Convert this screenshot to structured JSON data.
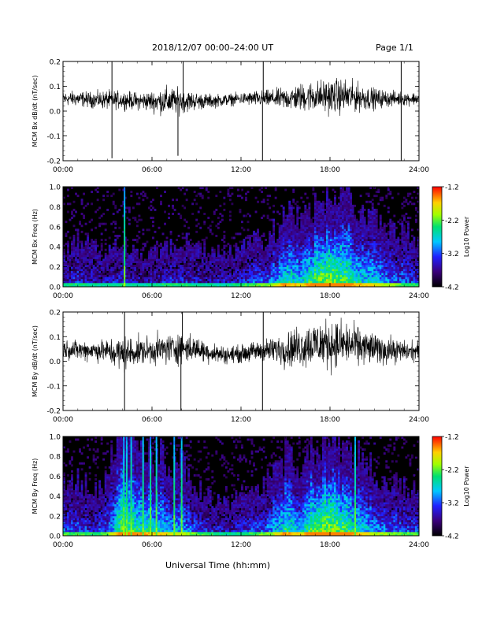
{
  "header": {
    "title": "2018/12/07  00:00–24:00 UT",
    "page": "Page 1/1"
  },
  "x_axis": {
    "label": "Universal Time (hh:mm)",
    "tick_labels": [
      "00:00",
      "06:00",
      "12:00",
      "18:00",
      "24:00"
    ]
  },
  "colorbar": {
    "label": "Log10 Power",
    "tick_labels": [
      "-1.2",
      "-2.2",
      "-3.2",
      "-4.2"
    ],
    "range": [
      -4.2,
      -1.2
    ]
  },
  "chart_data": [
    {
      "type": "line",
      "ylabel": "MCM Bx dB/dt (nT/sec)",
      "xlim_hours": [
        0,
        24
      ],
      "ylim": [
        -0.2,
        0.2
      ],
      "y_tick_labels": [
        "0.2",
        "0.1",
        "0.0",
        "-0.1",
        "-0.2"
      ],
      "x_hours": [
        0,
        1,
        2,
        3,
        4,
        5,
        6,
        7,
        8,
        9,
        10,
        11,
        12,
        13,
        14,
        15,
        16,
        17,
        18,
        19,
        20,
        21,
        22,
        23,
        24
      ],
      "baseline": [
        0.05,
        0.05,
        0.045,
        0.045,
        0.045,
        0.04,
        0.04,
        0.04,
        0.04,
        0.04,
        0.04,
        0.045,
        0.05,
        0.05,
        0.05,
        0.05,
        0.055,
        0.06,
        0.06,
        0.06,
        0.055,
        0.05,
        0.05,
        0.05,
        0.05
      ],
      "amplitude": [
        0.04,
        0.045,
        0.045,
        0.055,
        0.05,
        0.05,
        0.06,
        0.085,
        0.07,
        0.05,
        0.04,
        0.035,
        0.035,
        0.045,
        0.05,
        0.065,
        0.08,
        0.09,
        0.1,
        0.1,
        0.08,
        0.06,
        0.045,
        0.04,
        0.035
      ],
      "spikes": [
        {
          "x": 3.3,
          "y": -0.19
        },
        {
          "x": 3.3,
          "y": 0.2
        },
        {
          "x": 7.75,
          "y": -0.18
        },
        {
          "x": 8.1,
          "y": 0.2
        },
        {
          "x": 13.45,
          "y": -0.2
        },
        {
          "x": 13.5,
          "y": 0.2
        },
        {
          "x": 22.8,
          "y": -0.2
        },
        {
          "x": 22.8,
          "y": 0.2
        }
      ]
    },
    {
      "type": "heatmap",
      "ylabel": "MCM Bx Freq (Hz)",
      "xlim_hours": [
        0,
        24
      ],
      "ylim": [
        0,
        1
      ],
      "y_tick_labels": [
        "1.0",
        "0.8",
        "0.6",
        "0.4",
        "0.2",
        "0.0"
      ],
      "activity_hours": [
        0,
        1,
        2,
        3,
        4,
        5,
        6,
        7,
        8,
        9,
        10,
        11,
        12,
        13,
        14,
        15,
        16,
        17,
        18,
        19,
        20,
        21,
        22,
        23,
        24
      ],
      "activity_top_freq_hz": [
        0.2,
        0.3,
        0.25,
        0.2,
        0.3,
        0.2,
        0.2,
        0.25,
        0.3,
        0.25,
        0.2,
        0.2,
        0.25,
        0.3,
        0.3,
        0.5,
        0.4,
        0.55,
        0.6,
        0.55,
        0.5,
        0.45,
        0.35,
        0.35,
        0.3
      ],
      "activity_level": [
        0.25,
        0.3,
        0.25,
        0.25,
        0.3,
        0.25,
        0.25,
        0.3,
        0.3,
        0.25,
        0.25,
        0.25,
        0.3,
        0.35,
        0.4,
        0.6,
        0.5,
        0.7,
        0.75,
        0.65,
        0.55,
        0.5,
        0.4,
        0.35,
        0.3
      ],
      "vertical_streaks_hours": [
        4.15
      ]
    },
    {
      "type": "line",
      "ylabel": "MCM By dB/dt (nT/sec)",
      "xlim_hours": [
        0,
        24
      ],
      "ylim": [
        -0.2,
        0.2
      ],
      "y_tick_labels": [
        "0.2",
        "0.1",
        "0.0",
        "-0.1",
        "-0.2"
      ],
      "x_hours": [
        0,
        1,
        2,
        3,
        4,
        5,
        6,
        7,
        8,
        9,
        10,
        11,
        12,
        13,
        14,
        15,
        16,
        17,
        18,
        19,
        20,
        21,
        22,
        23,
        24
      ],
      "baseline": [
        0.05,
        0.045,
        0.045,
        0.04,
        0.03,
        0.04,
        0.045,
        0.05,
        0.055,
        0.05,
        0.035,
        0.025,
        0.03,
        0.04,
        0.045,
        0.05,
        0.06,
        0.07,
        0.07,
        0.07,
        0.06,
        0.05,
        0.045,
        0.04,
        0.04
      ],
      "amplitude": [
        0.05,
        0.06,
        0.06,
        0.07,
        0.11,
        0.08,
        0.08,
        0.09,
        0.09,
        0.07,
        0.06,
        0.05,
        0.05,
        0.06,
        0.07,
        0.1,
        0.12,
        0.14,
        0.14,
        0.13,
        0.11,
        0.09,
        0.08,
        0.06,
        0.06
      ],
      "spikes": [
        {
          "x": 4.15,
          "y": -0.2
        },
        {
          "x": 4.15,
          "y": 0.2
        },
        {
          "x": 7.95,
          "y": -0.2
        },
        {
          "x": 8.05,
          "y": 0.2
        },
        {
          "x": 13.45,
          "y": -0.2
        },
        {
          "x": 13.5,
          "y": 0.2
        }
      ]
    },
    {
      "type": "heatmap",
      "ylabel": "MCM By Freq (Hz)",
      "xlim_hours": [
        0,
        24
      ],
      "ylim": [
        0,
        1
      ],
      "y_tick_labels": [
        "1.0",
        "0.8",
        "0.6",
        "0.4",
        "0.2",
        "0.0"
      ],
      "activity_hours": [
        0,
        1,
        2,
        3,
        4,
        5,
        6,
        7,
        8,
        9,
        10,
        11,
        12,
        13,
        14,
        15,
        16,
        17,
        18,
        19,
        20,
        21,
        22,
        23,
        24
      ],
      "activity_top_freq_hz": [
        0.35,
        0.35,
        0.3,
        0.35,
        0.7,
        0.6,
        0.5,
        0.5,
        0.45,
        0.3,
        0.25,
        0.2,
        0.25,
        0.3,
        0.35,
        0.5,
        0.4,
        0.6,
        0.6,
        0.55,
        0.5,
        0.4,
        0.35,
        0.3,
        0.3
      ],
      "activity_level": [
        0.35,
        0.35,
        0.3,
        0.35,
        0.7,
        0.6,
        0.55,
        0.5,
        0.45,
        0.35,
        0.3,
        0.25,
        0.3,
        0.35,
        0.4,
        0.6,
        0.5,
        0.7,
        0.75,
        0.65,
        0.55,
        0.45,
        0.4,
        0.35,
        0.35
      ],
      "vertical_streaks_hours": [
        4.1,
        4.3,
        4.6,
        5.4,
        5.9,
        6.3,
        7.5,
        8.0,
        19.7
      ]
    }
  ]
}
